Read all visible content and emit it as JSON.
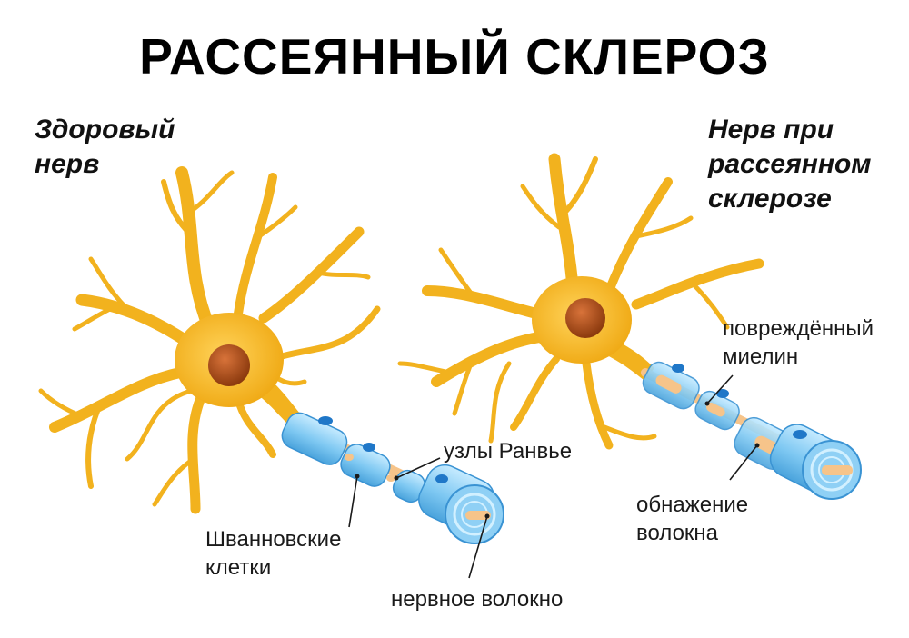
{
  "title": "РАССЕЯННЫЙ СКЛЕРОЗ",
  "healthy": {
    "heading_lines": [
      "Здоровый",
      "нерв"
    ]
  },
  "ms": {
    "heading_lines": [
      "Нерв при",
      "рассеянном",
      "склерозе"
    ]
  },
  "labels": {
    "nodes_of_ranvier": "узлы Ранвье",
    "schwann_cells": [
      "Шванновские",
      "клетки"
    ],
    "nerve_fiber": "нервное волокно",
    "damaged_myelin": [
      "повреждённый",
      "миелин"
    ],
    "exposed_fiber": [
      "обнажение",
      "волокна"
    ]
  },
  "colors": {
    "neuron": "#f2b21e",
    "neuron_dark": "#e29a0c",
    "nucleus": "#b8531a",
    "myelin": "#7cc6ef",
    "myelin_dark": "#3a93d3",
    "axon": "#f6c48a",
    "node": "#1f77c8"
  }
}
